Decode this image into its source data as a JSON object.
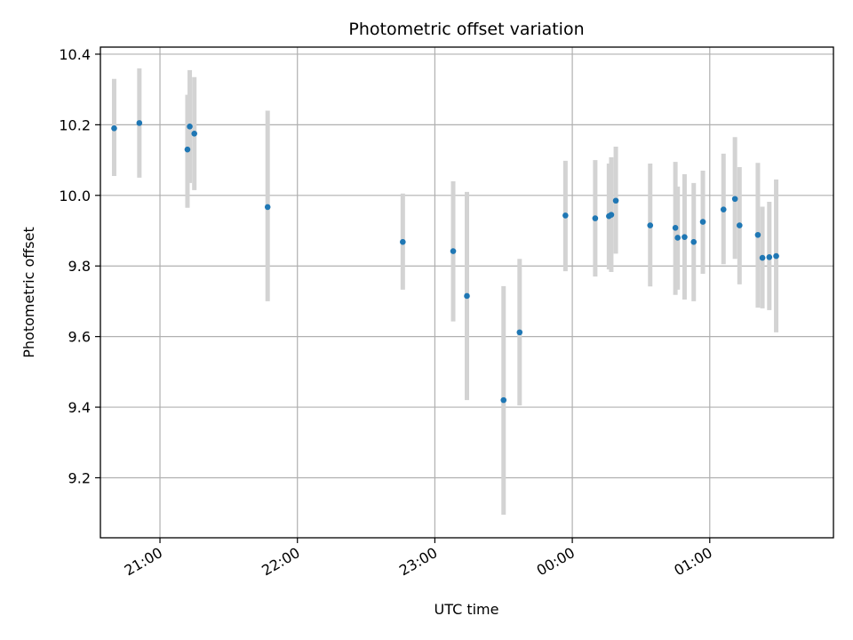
{
  "chart_data": {
    "type": "scatter",
    "title": "Photometric offset variation",
    "xlabel": "UTC time",
    "ylabel": "Photometric offset",
    "x_axis": {
      "kind": "time",
      "range": [
        "20:34",
        "01:54"
      ],
      "ticks": [
        "21:00",
        "22:00",
        "23:00",
        "00:00",
        "01:00"
      ]
    },
    "y_axis": {
      "range": [
        9.03,
        10.42
      ],
      "ticks": [
        "9.2",
        "9.4",
        "9.6",
        "9.8",
        "10.0",
        "10.2",
        "10.4"
      ]
    },
    "grid": true,
    "colors": {
      "points": "#1f77b4",
      "error_bars": "#d3d3d3",
      "grid": "#b0b0b0"
    },
    "points": [
      {
        "x": "20:40",
        "y": 10.19,
        "lo": 10.055,
        "hi": 10.33
      },
      {
        "x": "20:51",
        "y": 10.205,
        "lo": 10.05,
        "hi": 10.36
      },
      {
        "x": "21:12",
        "y": 10.13,
        "lo": 9.965,
        "hi": 10.285
      },
      {
        "x": "21:13",
        "y": 10.195,
        "lo": 10.035,
        "hi": 10.355
      },
      {
        "x": "21:15",
        "y": 10.175,
        "lo": 10.015,
        "hi": 10.335
      },
      {
        "x": "21:47",
        "y": 9.967,
        "lo": 9.7,
        "hi": 10.24
      },
      {
        "x": "22:46",
        "y": 9.868,
        "lo": 9.733,
        "hi": 10.005
      },
      {
        "x": "23:08",
        "y": 9.842,
        "lo": 9.643,
        "hi": 10.04
      },
      {
        "x": "23:14",
        "y": 9.715,
        "lo": 9.42,
        "hi": 10.01
      },
      {
        "x": "23:30",
        "y": 9.42,
        "lo": 9.095,
        "hi": 9.743
      },
      {
        "x": "23:37",
        "y": 9.612,
        "lo": 9.405,
        "hi": 9.82
      },
      {
        "x": "23:57",
        "y": 9.943,
        "lo": 9.785,
        "hi": 10.098
      },
      {
        "x": "00:10",
        "y": 9.935,
        "lo": 9.77,
        "hi": 10.1
      },
      {
        "x": "00:16",
        "y": 9.941,
        "lo": 9.79,
        "hi": 10.09
      },
      {
        "x": "00:17",
        "y": 9.945,
        "lo": 9.783,
        "hi": 10.108
      },
      {
        "x": "00:19",
        "y": 9.985,
        "lo": 9.835,
        "hi": 10.138
      },
      {
        "x": "00:34",
        "y": 9.915,
        "lo": 9.742,
        "hi": 10.09
      },
      {
        "x": "00:45",
        "y": 9.908,
        "lo": 9.718,
        "hi": 10.095
      },
      {
        "x": "00:46",
        "y": 9.88,
        "lo": 9.733,
        "hi": 10.025
      },
      {
        "x": "00:49",
        "y": 9.882,
        "lo": 9.705,
        "hi": 10.06
      },
      {
        "x": "00:53",
        "y": 9.868,
        "lo": 9.7,
        "hi": 10.035
      },
      {
        "x": "00:57",
        "y": 9.925,
        "lo": 9.778,
        "hi": 10.07
      },
      {
        "x": "01:06",
        "y": 9.96,
        "lo": 9.805,
        "hi": 10.118
      },
      {
        "x": "01:11",
        "y": 9.99,
        "lo": 9.82,
        "hi": 10.165
      },
      {
        "x": "01:13",
        "y": 9.915,
        "lo": 9.748,
        "hi": 10.08
      },
      {
        "x": "01:21",
        "y": 9.888,
        "lo": 9.682,
        "hi": 10.092
      },
      {
        "x": "01:23",
        "y": 9.823,
        "lo": 9.68,
        "hi": 9.968
      },
      {
        "x": "01:26",
        "y": 9.825,
        "lo": 9.675,
        "hi": 9.982
      },
      {
        "x": "01:29",
        "y": 9.828,
        "lo": 9.612,
        "hi": 10.045
      }
    ]
  }
}
